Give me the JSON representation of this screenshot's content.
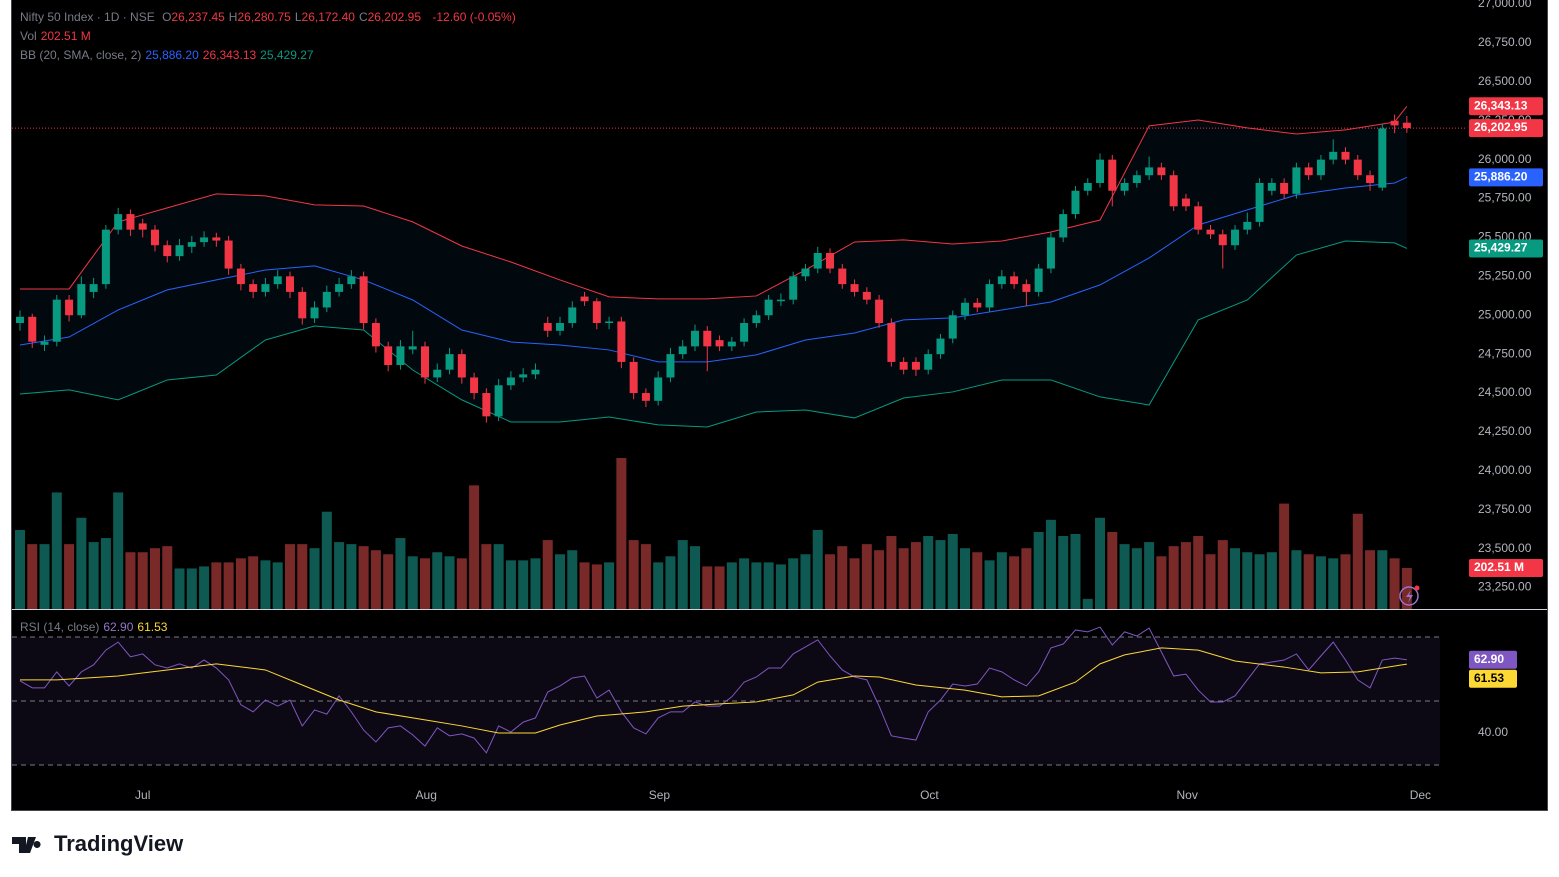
{
  "chart_data": {
    "type": "candlestick",
    "legend": {
      "symbol": "Nifty 50 Index · 1D · NSE",
      "ohlc": [
        {
          "key": "O",
          "value": "26,237.45"
        },
        {
          "key": "H",
          "value": "26,280.75"
        },
        {
          "key": "L",
          "value": "26,172.40"
        },
        {
          "key": "C",
          "value": "26,202.95"
        }
      ],
      "change": "-12.60 (-0.05%)",
      "vol_name": "Vol",
      "vol_text": "202.51 M",
      "bb_name": "BB (20, SMA, close, 2)",
      "bb_values": [
        "25,886.20",
        "26,343.13",
        "25,429.27"
      ],
      "rsi_name": "RSI (14, close)",
      "rsi_values": [
        "62.90",
        "61.53"
      ]
    },
    "up_color": "#089981",
    "down_color": "#f23645",
    "volume_up_color": "#0e5a52",
    "volume_down_color": "#7a2929",
    "xlim": [
      -0.65,
      117.9
    ],
    "xticks": [
      {
        "value": 10,
        "label": "Jul"
      },
      {
        "value": 33.1,
        "label": "Aug"
      },
      {
        "value": 52.1,
        "label": "Sep"
      },
      {
        "value": 74.1,
        "label": "Oct"
      },
      {
        "value": 95.1,
        "label": "Nov"
      },
      {
        "value": 114.1,
        "label": "Dec"
      }
    ],
    "ylim": [
      23112,
      27026
    ],
    "yticks": [
      {
        "value": 23250,
        "label": "23,250.00"
      },
      {
        "value": 23500,
        "label": "23,500.00"
      },
      {
        "value": 23750,
        "label": "23,750.00"
      },
      {
        "value": 24000,
        "label": "24,000.00"
      },
      {
        "value": 24250,
        "label": "24,250.00"
      },
      {
        "value": 24500,
        "label": "24,500.00"
      },
      {
        "value": 24750,
        "label": "24,750.00"
      },
      {
        "value": 25000,
        "label": "25,000.00"
      },
      {
        "value": 25250,
        "label": "25,250.00"
      },
      {
        "value": 25500,
        "label": "25,500.00"
      },
      {
        "value": 25750,
        "label": "25,750.00"
      },
      {
        "value": 26000,
        "label": "26,000.00"
      },
      {
        "value": 26250,
        "label": "26,250.00"
      },
      {
        "value": 26500,
        "label": "26,500.00"
      },
      {
        "value": 26750,
        "label": "26,750.00"
      },
      {
        "value": 27000,
        "label": "27,000.00"
      }
    ],
    "candles": [
      [
        24950,
        25030,
        24900,
        24990
      ],
      [
        24990,
        25010,
        24790,
        24830
      ],
      [
        24810,
        24870,
        24770,
        24830
      ],
      [
        24830,
        25130,
        24800,
        25100
      ],
      [
        25100,
        25130,
        24960,
        25000
      ],
      [
        25000,
        25250,
        24980,
        25200
      ],
      [
        25150,
        25240,
        25110,
        25200
      ],
      [
        25200,
        25580,
        25170,
        25550
      ],
      [
        25550,
        25690,
        25520,
        25650
      ],
      [
        25650,
        25680,
        25510,
        25550
      ],
      [
        25590,
        25620,
        25500,
        25550
      ],
      [
        25550,
        25580,
        25410,
        25450
      ],
      [
        25450,
        25480,
        25340,
        25380
      ],
      [
        25380,
        25490,
        25350,
        25450
      ],
      [
        25440,
        25510,
        25400,
        25470
      ],
      [
        25470,
        25540,
        25440,
        25500
      ],
      [
        25500,
        25530,
        25440,
        25480
      ],
      [
        25480,
        25510,
        25260,
        25300
      ],
      [
        25300,
        25330,
        25160,
        25200
      ],
      [
        25200,
        25230,
        25110,
        25150
      ],
      [
        25150,
        25240,
        25120,
        25200
      ],
      [
        25200,
        25290,
        25170,
        25250
      ],
      [
        25250,
        25280,
        25110,
        25150
      ],
      [
        25150,
        25180,
        24940,
        24980
      ],
      [
        24980,
        25090,
        24950,
        25050
      ],
      [
        25050,
        25190,
        25020,
        25150
      ],
      [
        25150,
        25240,
        25120,
        25200
      ],
      [
        25200,
        25290,
        25170,
        25250
      ],
      [
        25250,
        25280,
        24910,
        24950
      ],
      [
        24950,
        24980,
        24760,
        24800
      ],
      [
        24800,
        24830,
        24640,
        24680
      ],
      [
        24680,
        24840,
        24650,
        24800
      ],
      [
        24780,
        24900,
        24750,
        24800
      ],
      [
        24800,
        24830,
        24560,
        24600
      ],
      [
        24600,
        24690,
        24570,
        24650
      ],
      [
        24650,
        24790,
        24620,
        24750
      ],
      [
        24750,
        24780,
        24560,
        24600
      ],
      [
        24600,
        24630,
        24460,
        24500
      ],
      [
        24500,
        24530,
        24310,
        24350
      ],
      [
        24350,
        24590,
        24320,
        24550
      ],
      [
        24550,
        24640,
        24520,
        24600
      ],
      [
        24600,
        24660,
        24570,
        24620
      ],
      [
        24620,
        24690,
        24590,
        24650
      ],
      [
        24950,
        24990,
        24860,
        24900
      ],
      [
        24900,
        24990,
        24870,
        24950
      ],
      [
        24950,
        25090,
        24920,
        25050
      ],
      [
        25120,
        25150,
        25060,
        25090
      ],
      [
        25090,
        25110,
        24910,
        24950
      ],
      [
        24950,
        24990,
        24910,
        24960
      ],
      [
        24960,
        24990,
        24660,
        24700
      ],
      [
        24700,
        24730,
        24460,
        24500
      ],
      [
        24500,
        24530,
        24410,
        24450
      ],
      [
        24450,
        24640,
        24420,
        24600
      ],
      [
        24600,
        24790,
        24570,
        24750
      ],
      [
        24750,
        24840,
        24720,
        24800
      ],
      [
        24800,
        24940,
        24770,
        24900
      ],
      [
        24900,
        24930,
        24640,
        24800
      ],
      [
        24840,
        24870,
        24770,
        24800
      ],
      [
        24800,
        24860,
        24770,
        24830
      ],
      [
        24830,
        24980,
        24800,
        24950
      ],
      [
        24950,
        25030,
        24920,
        25000
      ],
      [
        25000,
        25130,
        24970,
        25100
      ],
      [
        25090,
        25140,
        25060,
        25100
      ],
      [
        25100,
        25280,
        25070,
        25250
      ],
      [
        25250,
        25330,
        25220,
        25300
      ],
      [
        25300,
        25440,
        25270,
        25400
      ],
      [
        25400,
        25430,
        25270,
        25300
      ],
      [
        25300,
        25330,
        25170,
        25200
      ],
      [
        25200,
        25230,
        25120,
        25150
      ],
      [
        25150,
        25180,
        25070,
        25100
      ],
      [
        25100,
        25130,
        24920,
        24950
      ],
      [
        24950,
        24980,
        24670,
        24700
      ],
      [
        24700,
        24730,
        24620,
        24650
      ],
      [
        24700,
        24730,
        24610,
        24650
      ],
      [
        24650,
        24780,
        24620,
        24750
      ],
      [
        24750,
        24880,
        24720,
        24850
      ],
      [
        24850,
        25030,
        24820,
        25000
      ],
      [
        25000,
        25110,
        24970,
        25080
      ],
      [
        25080,
        25110,
        25020,
        25050
      ],
      [
        25050,
        25230,
        25020,
        25200
      ],
      [
        25200,
        25290,
        25170,
        25250
      ],
      [
        25250,
        25280,
        25170,
        25200
      ],
      [
        25200,
        25230,
        25060,
        25150
      ],
      [
        25150,
        25330,
        25120,
        25300
      ],
      [
        25300,
        25530,
        25270,
        25500
      ],
      [
        25500,
        25680,
        25470,
        25650
      ],
      [
        25650,
        25830,
        25620,
        25800
      ],
      [
        25800,
        25880,
        25770,
        25850
      ],
      [
        25850,
        26040,
        25820,
        26000
      ],
      [
        26000,
        26030,
        25700,
        25800
      ],
      [
        25800,
        25880,
        25770,
        25850
      ],
      [
        25850,
        25930,
        25820,
        25900
      ],
      [
        25900,
        26020,
        25870,
        25950
      ],
      [
        25950,
        25980,
        25870,
        25900
      ],
      [
        25900,
        25930,
        25670,
        25700
      ],
      [
        25750,
        25780,
        25670,
        25700
      ],
      [
        25700,
        25730,
        25520,
        25550
      ],
      [
        25550,
        25580,
        25490,
        25520
      ],
      [
        25520,
        25550,
        25300,
        25450
      ],
      [
        25450,
        25580,
        25420,
        25550
      ],
      [
        25550,
        25660,
        25520,
        25600
      ],
      [
        25600,
        25880,
        25570,
        25850
      ],
      [
        25800,
        25880,
        25770,
        25850
      ],
      [
        25850,
        25880,
        25750,
        25780
      ],
      [
        25780,
        25980,
        25750,
        25950
      ],
      [
        25950,
        25980,
        25870,
        25900
      ],
      [
        25900,
        26030,
        25870,
        26000
      ],
      [
        26000,
        26130,
        25970,
        26050
      ],
      [
        26050,
        26080,
        25970,
        26000
      ],
      [
        26000,
        26030,
        25870,
        25900
      ],
      [
        25900,
        25930,
        25800,
        25850
      ],
      [
        25820,
        26230,
        25800,
        26200
      ],
      [
        26250,
        26290,
        26170,
        26220
      ],
      [
        26237.45,
        26280.75,
        26172.4,
        26202.95
      ]
    ],
    "volume": [
      390,
      320,
      320,
      575,
      320,
      450,
      330,
      350,
      575,
      280,
      280,
      300,
      310,
      200,
      200,
      210,
      230,
      230,
      250,
      260,
      240,
      230,
      320,
      320,
      300,
      480,
      330,
      320,
      310,
      290,
      270,
      350,
      260,
      250,
      280,
      260,
      250,
      610,
      320,
      320,
      240,
      240,
      250,
      340,
      270,
      290,
      230,
      220,
      230,
      745,
      340,
      320,
      230,
      260,
      340,
      310,
      210,
      210,
      230,
      250,
      230,
      230,
      220,
      250,
      270,
      390,
      270,
      310,
      250,
      320,
      290,
      360,
      300,
      330,
      360,
      340,
      370,
      300,
      280,
      240,
      280,
      260,
      300,
      380,
      440,
      360,
      370,
      50,
      450,
      380,
      320,
      300,
      330,
      260,
      310,
      330,
      360,
      270,
      340,
      300,
      280,
      270,
      280,
      520,
      290,
      270,
      260,
      250,
      270,
      470,
      290,
      290,
      250,
      202.51
    ],
    "bb": {
      "x": [
        0,
        4,
        8,
        12,
        16,
        20,
        24,
        28,
        32,
        36,
        40,
        44,
        48,
        52,
        56,
        60,
        64,
        68,
        72,
        76,
        80,
        84,
        88,
        92,
        96,
        100,
        104,
        108,
        112,
        113
      ],
      "upper": [
        25169,
        25169,
        25600,
        25690,
        25780,
        25767,
        25709,
        25702,
        25600,
        25445,
        25342,
        25227,
        25118,
        25105,
        25105,
        25124,
        25291,
        25471,
        25484,
        25458,
        25477,
        25535,
        25612,
        26217,
        26255,
        26204,
        26165,
        26191,
        26242,
        26343.13
      ],
      "middle": [
        24809,
        24860,
        25034,
        25163,
        25227,
        25291,
        25317,
        25227,
        25098,
        24905,
        24828,
        24809,
        24777,
        24700,
        24700,
        24745,
        24841,
        24886,
        24970,
        24983,
        25034,
        25085,
        25195,
        25368,
        25580,
        25677,
        25773,
        25818,
        25850,
        25886.2
      ],
      "lower": [
        24494,
        24520,
        24456,
        24584,
        24616,
        24841,
        24931,
        24905,
        24648,
        24456,
        24314,
        24314,
        24346,
        24295,
        24282,
        24378,
        24391,
        24340,
        24468,
        24507,
        24584,
        24584,
        24475,
        24423,
        24970,
        25098,
        25387,
        25477,
        25465,
        25429.27
      ],
      "colors": [
        "#f23645",
        "#2962ff",
        "#089981"
      ]
    },
    "rsi": {
      "ylim": [
        25.3,
        77.5
      ],
      "yticks": [
        {
          "value": 40,
          "label": "40.00"
        }
      ],
      "levels": [
        70,
        50,
        30
      ],
      "color": "#7e57c2",
      "ma_color": "#fdd835",
      "values": [
        56.3,
        54.1,
        54.1,
        59.1,
        54.7,
        59.1,
        61.3,
        65.9,
        68.4,
        63.8,
        64.7,
        61.3,
        60.3,
        61.6,
        60.3,
        62.8,
        60.3,
        56.6,
        48.8,
        46.6,
        50.3,
        48.4,
        50.3,
        42.2,
        47.2,
        45.9,
        51.6,
        46.6,
        40.9,
        37.2,
        41.6,
        42.2,
        39.4,
        35.9,
        41.6,
        39.1,
        39.7,
        38.4,
        33.8,
        42.2,
        40.3,
        43.4,
        44.7,
        52.8,
        54.7,
        57.2,
        57.8,
        50.9,
        53.4,
        46.6,
        41.6,
        39.7,
        44.7,
        46.6,
        46.6,
        49.7,
        48.4,
        48.4,
        51.3,
        55.9,
        57.5,
        60.3,
        60.3,
        64.7,
        66.9,
        69.1,
        64.1,
        59.7,
        57.5,
        56.6,
        48.4,
        39.1,
        38.4,
        37.8,
        46.6,
        50.3,
        55.3,
        54.7,
        55.3,
        60.3,
        59.1,
        56.6,
        54.7,
        59.1,
        66.6,
        67.8,
        72.2,
        71.6,
        73.1,
        67.5,
        71.6,
        70.3,
        72.8,
        65.3,
        57.8,
        58.4,
        53.4,
        49.7,
        49.7,
        51.6,
        56.6,
        61.6,
        62.2,
        62.8,
        64.7,
        59.7,
        64.1,
        68.4,
        62.8,
        56.6,
        54.1,
        62.8,
        63.4,
        62.9
      ],
      "ma_x": [
        0,
        3,
        8,
        12,
        16,
        20,
        23,
        26,
        29,
        33,
        36,
        39,
        42,
        44,
        47,
        51,
        54,
        57,
        60,
        63,
        65,
        68,
        70,
        73,
        77,
        80,
        83,
        86,
        88,
        90,
        93,
        96,
        99,
        103,
        106,
        109,
        113
      ],
      "ma_values": [
        56.6,
        56.6,
        57.8,
        59.7,
        61.6,
        59.7,
        55.0,
        50.3,
        46.6,
        44.1,
        42.2,
        40.0,
        40.0,
        42.5,
        45.3,
        46.6,
        48.4,
        49.1,
        49.7,
        51.9,
        55.9,
        57.8,
        57.5,
        55.0,
        53.4,
        51.3,
        51.6,
        55.9,
        61.6,
        64.4,
        66.6,
        65.9,
        62.5,
        60.6,
        58.8,
        59.1,
        61.53
      ]
    },
    "brand": "TradingView"
  }
}
